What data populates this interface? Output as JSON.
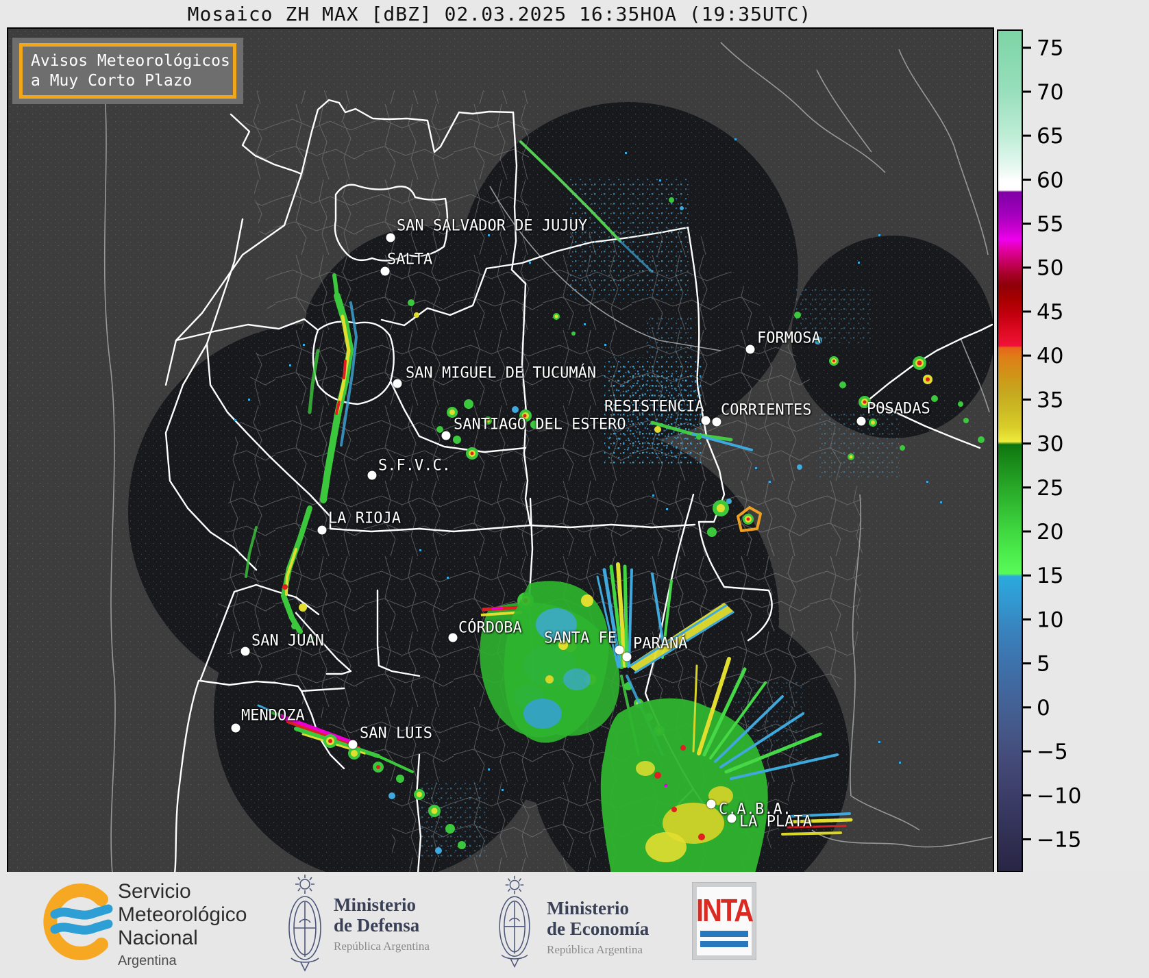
{
  "title": "Mosaico ZH MAX [dBZ] 02.03.2025 16:35HOA (19:35UTC)",
  "warning_box": {
    "line1": "Avisos Meteorológicos",
    "line2": "a Muy Corto Plazo",
    "border_color": "#F2A71B"
  },
  "map": {
    "cities": [
      {
        "name": "SAN SALVADOR DE JUJUY",
        "label": [
          567,
          288
        ],
        "dot": [
          558,
          305
        ]
      },
      {
        "name": "SALTA",
        "label": [
          553,
          337
        ],
        "dot": [
          550,
          354
        ]
      },
      {
        "name": "SAN MIGUEL DE TUCUMÁN",
        "label": [
          580,
          503
        ],
        "dot": [
          568,
          518
        ]
      },
      {
        "name": "SANTIAGO DEL ESTERO",
        "label": [
          650,
          578
        ],
        "dot": [
          639,
          594
        ]
      },
      {
        "name": "S.F.V.C.",
        "label": [
          540,
          638
        ],
        "dot": [
          531,
          652
        ]
      },
      {
        "name": "LA RIOJA",
        "label": [
          467,
          715
        ],
        "dot": [
          458,
          732
        ]
      },
      {
        "name": "FORMOSA",
        "label": [
          1093,
          452
        ],
        "dot": [
          1083,
          468
        ]
      },
      {
        "name": "RESISTENCIA",
        "label": [
          870,
          552
        ],
        "dot": [
          1018,
          572
        ]
      },
      {
        "name": "CORRIENTES",
        "label": [
          1040,
          557
        ],
        "dot": [
          1034,
          574
        ]
      },
      {
        "name": "POSADAS",
        "label": [
          1253,
          555
        ],
        "dot": [
          1245,
          573
        ]
      },
      {
        "name": "CÓRDOBA",
        "label": [
          657,
          875
        ],
        "dot": [
          649,
          889
        ]
      },
      {
        "name": "SANTA FE",
        "label": [
          782,
          890
        ],
        "dot": [
          892,
          907
        ]
      },
      {
        "name": "PARANÁ",
        "label": [
          912,
          898
        ],
        "dot": [
          903,
          917
        ]
      },
      {
        "name": "SAN JUAN",
        "label": [
          355,
          894
        ],
        "dot": [
          346,
          909
        ]
      },
      {
        "name": "MENDOZA",
        "label": [
          340,
          1003
        ],
        "dot": [
          332,
          1021
        ]
      },
      {
        "name": "SAN LUIS",
        "label": [
          513,
          1029
        ],
        "dot": [
          503,
          1045
        ]
      },
      {
        "name": "C.A.B.A.",
        "label": [
          1037,
          1140
        ],
        "dot": [
          1026,
          1132
        ]
      },
      {
        "name": "LA PLATA",
        "label": [
          1067,
          1158
        ],
        "dot": [
          1056,
          1153
        ]
      }
    ]
  },
  "colorbar": {
    "unit": "dBZ",
    "top_value": 77,
    "bottom_value": -18.7,
    "ticks": [
      {
        "label": "75",
        "value": 75
      },
      {
        "label": "70",
        "value": 70
      },
      {
        "label": "65",
        "value": 65
      },
      {
        "label": "60",
        "value": 60
      },
      {
        "label": "55",
        "value": 55
      },
      {
        "label": "50",
        "value": 50
      },
      {
        "label": "45",
        "value": 45
      },
      {
        "label": "40",
        "value": 40
      },
      {
        "label": "35",
        "value": 35
      },
      {
        "label": "30",
        "value": 30
      },
      {
        "label": "25",
        "value": 25
      },
      {
        "label": "20",
        "value": 20
      },
      {
        "label": "15",
        "value": 15
      },
      {
        "label": "10",
        "value": 10
      },
      {
        "label": "5",
        "value": 5
      },
      {
        "label": "0",
        "value": 0
      },
      {
        "label": "−5",
        "value": -5
      },
      {
        "label": "−10",
        "value": -10
      },
      {
        "label": "−15",
        "value": -15
      }
    ],
    "stops": [
      {
        "v": 77,
        "c": "#7CD4A4"
      },
      {
        "v": 70,
        "c": "#98DFBD"
      },
      {
        "v": 65,
        "c": "#BFEDD6"
      },
      {
        "v": 61.5,
        "c": "#E6F8F0"
      },
      {
        "v": 60.1,
        "c": "#FBFDFC"
      },
      {
        "v": 59.9,
        "c": "#FFFFFF"
      },
      {
        "v": 58.8,
        "c": "#FFFFFF"
      },
      {
        "v": 58.6,
        "c": "#7E00A4"
      },
      {
        "v": 56,
        "c": "#A400BE"
      },
      {
        "v": 54.5,
        "c": "#C800CE"
      },
      {
        "v": 53.2,
        "c": "#EE00EE"
      },
      {
        "v": 52,
        "c": "#E100A0"
      },
      {
        "v": 50.5,
        "c": "#C4005C"
      },
      {
        "v": 49.3,
        "c": "#A8002A"
      },
      {
        "v": 48,
        "c": "#8E0008"
      },
      {
        "v": 46.3,
        "c": "#A80000"
      },
      {
        "v": 44.5,
        "c": "#C40010"
      },
      {
        "v": 42.8,
        "c": "#DE0A22"
      },
      {
        "v": 41.1,
        "c": "#F01238"
      },
      {
        "v": 40.9,
        "c": "#E8641A"
      },
      {
        "v": 39.8,
        "c": "#DE7E18"
      },
      {
        "v": 37.8,
        "c": "#D09418"
      },
      {
        "v": 35.8,
        "c": "#C6A81E"
      },
      {
        "v": 33.8,
        "c": "#CCBA24"
      },
      {
        "v": 31.8,
        "c": "#DACE2A"
      },
      {
        "v": 30.2,
        "c": "#EEEC3C"
      },
      {
        "v": 29.9,
        "c": "#0E750E"
      },
      {
        "v": 27.5,
        "c": "#1C8F1C"
      },
      {
        "v": 25,
        "c": "#28A828"
      },
      {
        "v": 22.5,
        "c": "#34C034"
      },
      {
        "v": 20,
        "c": "#40D840"
      },
      {
        "v": 17.5,
        "c": "#4CEC4C"
      },
      {
        "v": 15.2,
        "c": "#58FA58"
      },
      {
        "v": 14.9,
        "c": "#2BAADD"
      },
      {
        "v": 12,
        "c": "#3298D0"
      },
      {
        "v": 9,
        "c": "#3884BE"
      },
      {
        "v": 6,
        "c": "#3C76B0"
      },
      {
        "v": 3,
        "c": "#406AA2"
      },
      {
        "v": 0,
        "c": "#446094"
      },
      {
        "v": -3,
        "c": "#455686"
      },
      {
        "v": -6,
        "c": "#434A78"
      },
      {
        "v": -9,
        "c": "#3E416C"
      },
      {
        "v": -12,
        "c": "#373760"
      },
      {
        "v": -15,
        "c": "#302F52"
      },
      {
        "v": -18.7,
        "c": "#282544"
      }
    ]
  },
  "footer": {
    "smn": {
      "line1": "Servicio",
      "line2": "Meteorológico",
      "line3": "Nacional",
      "line4": "Argentina"
    },
    "defensa": {
      "line1": "Ministerio",
      "line2": "de Defensa",
      "line3": "República Argentina"
    },
    "economia": {
      "line1": "Ministerio",
      "line2": "de Economía",
      "line3": "República Argentina"
    },
    "inta": {
      "label": "INTA"
    }
  }
}
